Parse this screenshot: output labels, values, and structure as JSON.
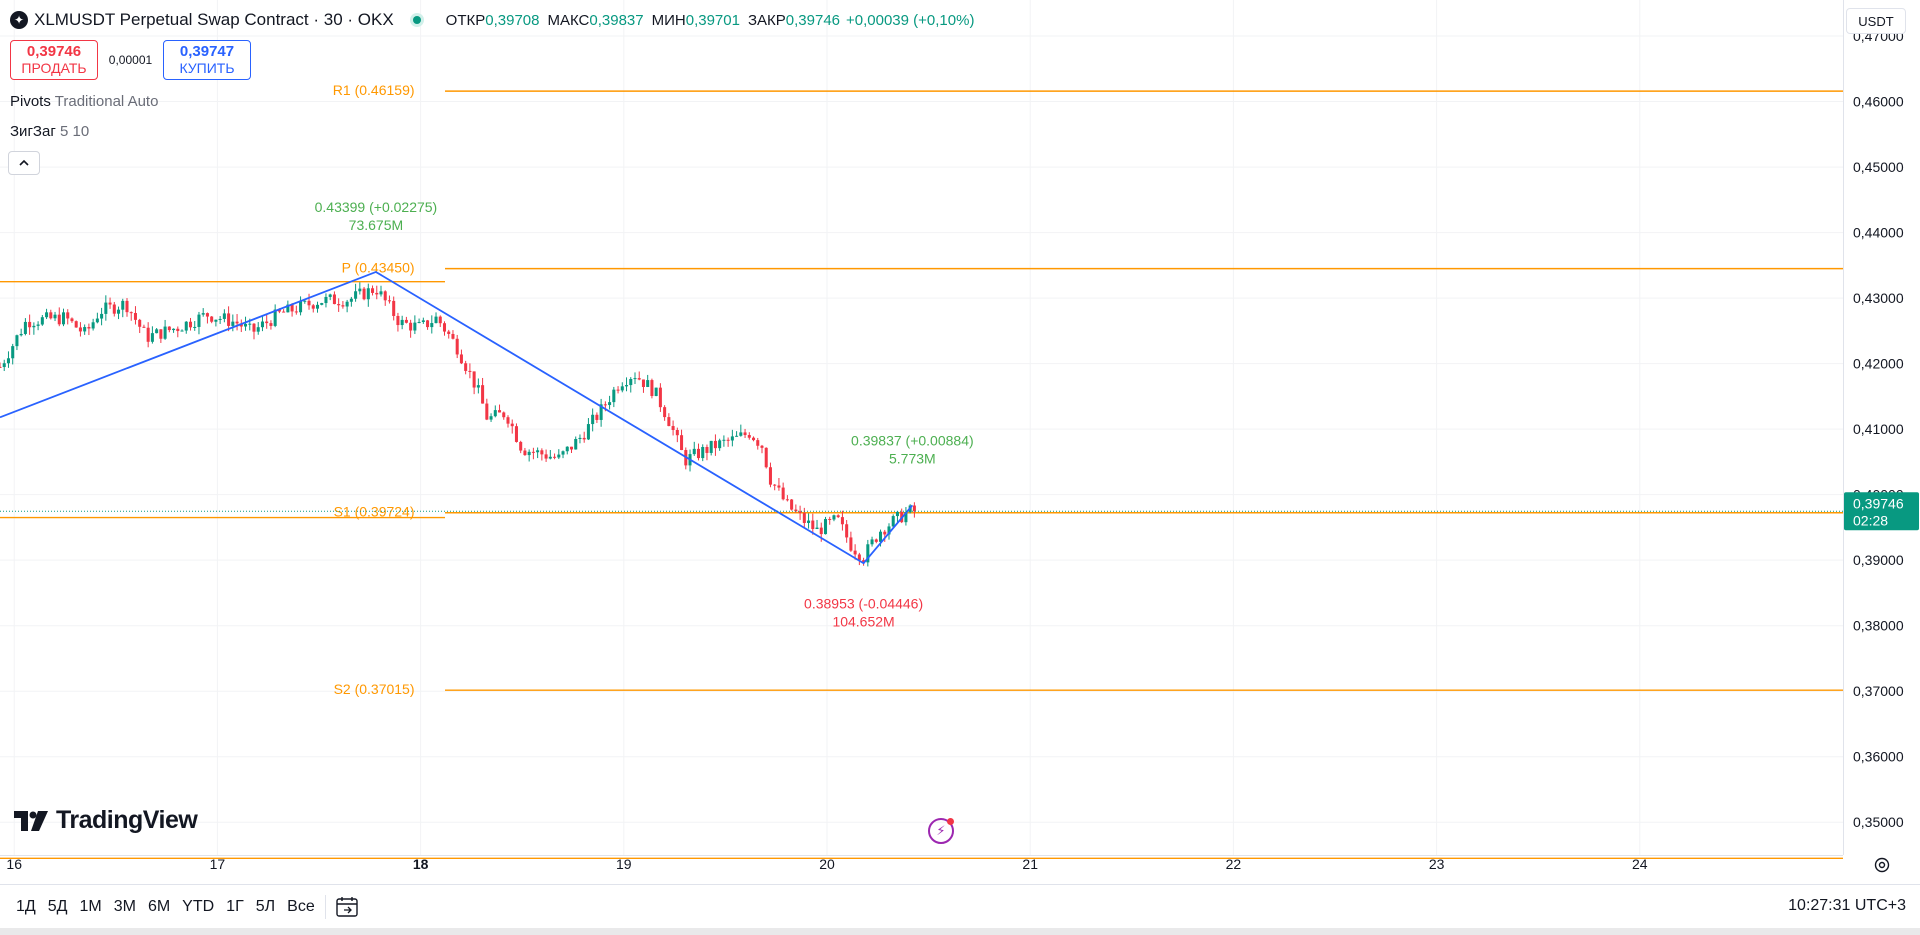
{
  "header": {
    "symbol_title": "XLMUSDT Perpetual Swap Contract · 30 · OKX",
    "ohlc": [
      {
        "label": "ОТКР",
        "value": "0,39708"
      },
      {
        "label": "МАКС",
        "value": "0,39837"
      },
      {
        "label": "МИН",
        "value": "0,39701"
      },
      {
        "label": "ЗАКР",
        "value": "0,39746"
      }
    ],
    "change": "+0,00039 (+0,10%)"
  },
  "trade": {
    "sell_price": "0,39746",
    "sell_label": "ПРОДАТЬ",
    "spread": "0,00001",
    "buy_price": "0,39747",
    "buy_label": "КУПИТЬ"
  },
  "indicators": {
    "pivots_name": "Pivots",
    "pivots_params": "Traditional Auto",
    "zigzag_name": "ЗигЗаг",
    "zigzag_params": "5 10"
  },
  "currency": "USDT",
  "price_scale": {
    "ticks": [
      "0,47000",
      "0,46000",
      "0,45000",
      "0,44000",
      "0,43000",
      "0,42000",
      "0,41000",
      "0,40000",
      "0,39000",
      "0,38000",
      "0,37000",
      "0,36000",
      "0,35000"
    ],
    "current_price": "0,39746",
    "countdown": "02:28"
  },
  "time_scale": {
    "ticks": [
      "16",
      "17",
      "18",
      "19",
      "20",
      "21",
      "22",
      "23",
      "24"
    ]
  },
  "bottom_bar": {
    "ranges": [
      "1Д",
      "5Д",
      "1М",
      "3М",
      "6М",
      "YTD",
      "1Г",
      "5Л",
      "Все"
    ],
    "clock": "10:27:31 UTC+3"
  },
  "branding": "TradingView",
  "colors": {
    "up": "#089981",
    "down": "#f23645",
    "pivot": "#ff9800",
    "zigzag": "#2962ff",
    "zz_label_up": "#4caf50",
    "zz_label_down": "#f23645"
  },
  "chart_data": {
    "type": "candlestick",
    "interval": "30",
    "y_range": [
      0.345,
      0.4755
    ],
    "x_range": [
      15.93,
      25.0
    ],
    "current_price": 0.39746,
    "pivot_levels": [
      {
        "name": "R1",
        "value": 0.46159,
        "label": "R1 (0.46159)"
      },
      {
        "name": "P",
        "value": 0.4345,
        "label": "P (0.43450)"
      },
      {
        "name": "S1",
        "value": 0.39724,
        "label": "S1 (0.39724)"
      },
      {
        "name": "S2",
        "value": 0.37015,
        "label": "S2 (0.37015)"
      },
      {
        "name": "S3",
        "value": 0.3445,
        "label": ""
      }
    ],
    "previous_pivots": [
      {
        "name": "P",
        "value": 0.4325
      },
      {
        "name": "S1",
        "value": 0.3965
      },
      {
        "name": "S3",
        "value": 0.3445
      }
    ],
    "zigzag": [
      {
        "day": 15.93,
        "price": 0.4118
      },
      {
        "day": 17.78,
        "price": 0.43399,
        "label": "0.43399 (+0.02275)",
        "volume": "73.675M"
      },
      {
        "day": 20.18,
        "price": 0.38953,
        "label": "0.38953 (-0.04446)",
        "volume": "104.652M"
      },
      {
        "day": 20.42,
        "price": 0.39837,
        "label": "0.39837 (+0.00884)",
        "volume": "5.773M"
      }
    ],
    "price_anchors": [
      [
        15.93,
        0.4195
      ],
      [
        16.06,
        0.4265
      ],
      [
        16.25,
        0.427
      ],
      [
        16.35,
        0.4245
      ],
      [
        16.42,
        0.428
      ],
      [
        16.55,
        0.4292
      ],
      [
        16.65,
        0.424
      ],
      [
        16.8,
        0.4255
      ],
      [
        16.95,
        0.4275
      ],
      [
        17.1,
        0.4262
      ],
      [
        17.17,
        0.4248
      ],
      [
        17.3,
        0.4275
      ],
      [
        17.5,
        0.4296
      ],
      [
        17.65,
        0.4298
      ],
      [
        17.78,
        0.4315
      ],
      [
        17.9,
        0.4262
      ],
      [
        18.0,
        0.4255
      ],
      [
        18.08,
        0.427
      ],
      [
        18.18,
        0.4225
      ],
      [
        18.28,
        0.416
      ],
      [
        18.33,
        0.4115
      ],
      [
        18.42,
        0.4125
      ],
      [
        18.5,
        0.407
      ],
      [
        18.6,
        0.4062
      ],
      [
        18.68,
        0.4055
      ],
      [
        18.78,
        0.4085
      ],
      [
        18.88,
        0.4125
      ],
      [
        18.98,
        0.4172
      ],
      [
        19.05,
        0.4185
      ],
      [
        19.15,
        0.4158
      ],
      [
        19.22,
        0.4115
      ],
      [
        19.3,
        0.4052
      ],
      [
        19.38,
        0.4065
      ],
      [
        19.45,
        0.4075
      ],
      [
        19.55,
        0.4085
      ],
      [
        19.62,
        0.4095
      ],
      [
        19.68,
        0.4075
      ],
      [
        19.72,
        0.4025
      ],
      [
        19.8,
        0.3985
      ],
      [
        19.88,
        0.3962
      ],
      [
        19.95,
        0.3945
      ],
      [
        20.05,
        0.3962
      ],
      [
        20.12,
        0.3922
      ],
      [
        20.18,
        0.3905
      ],
      [
        20.26,
        0.3945
      ],
      [
        20.33,
        0.396
      ],
      [
        20.4,
        0.3974
      ],
      [
        20.43,
        0.39746
      ]
    ]
  }
}
